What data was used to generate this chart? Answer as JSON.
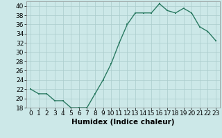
{
  "x": [
    0,
    1,
    2,
    3,
    4,
    5,
    6,
    7,
    8,
    9,
    10,
    11,
    12,
    13,
    14,
    15,
    16,
    17,
    18,
    19,
    20,
    21,
    22,
    23
  ],
  "y": [
    22,
    21,
    21,
    19.5,
    19.5,
    18,
    18,
    18,
    21,
    24,
    27.5,
    32,
    36,
    38.5,
    38.5,
    38.5,
    40.5,
    39,
    38.5,
    39.5,
    38.5,
    35.5,
    34.5,
    32.5
  ],
  "line_color": "#2a7a62",
  "marker_color": "#2a7a62",
  "bg_color": "#cce8e8",
  "grid_color": "#aacccc",
  "xlabel": "Humidex (Indice chaleur)",
  "ylim": [
    18,
    41
  ],
  "xlim": [
    -0.5,
    23.5
  ],
  "yticks": [
    18,
    20,
    22,
    24,
    26,
    28,
    30,
    32,
    34,
    36,
    38,
    40
  ],
  "xticks": [
    0,
    1,
    2,
    3,
    4,
    5,
    6,
    7,
    8,
    9,
    10,
    11,
    12,
    13,
    14,
    15,
    16,
    17,
    18,
    19,
    20,
    21,
    22,
    23
  ],
  "xlabel_fontsize": 7.5,
  "tick_fontsize": 6.5,
  "linewidth": 1.0,
  "markersize": 2.0
}
